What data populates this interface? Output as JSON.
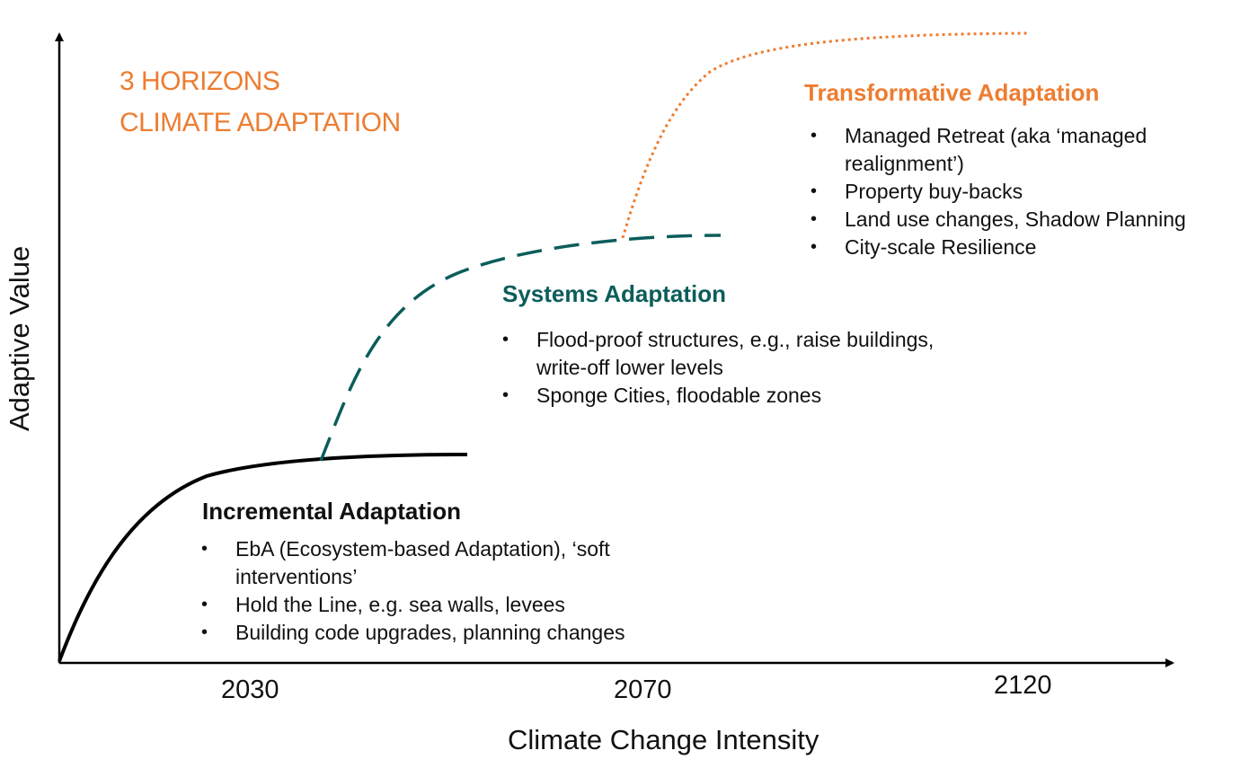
{
  "title_lines": [
    "3 HORIZONS",
    "CLIMATE ADAPTATION"
  ],
  "axes": {
    "x_label": "Climate Change Intensity",
    "y_label": "Adaptive Value",
    "x_ticks": [
      "2030",
      "2070",
      "2120"
    ]
  },
  "horizons": [
    {
      "name": "Incremental Adaptation",
      "line_style": "solid",
      "color": "#000000",
      "bullets": [
        "EbA (Ecosystem-based Adaptation), ‘soft",
        "interventions’",
        "Hold the Line, e.g. sea walls, levees",
        "Building code upgrades, planning changes"
      ]
    },
    {
      "name": "Systems Adaptation",
      "line_style": "dashed",
      "color": "#0B5D5A",
      "bullets": [
        "Flood-proof structures, e.g., raise buildings,",
        "write-off lower levels",
        "Sponge Cities, floodable zones"
      ]
    },
    {
      "name": "Transformative Adaptation",
      "line_style": "dotted",
      "color": "#ED7D31",
      "bullets": [
        "Managed Retreat (aka ‘managed",
        "realignment’)",
        "Property buy-backs",
        "Land use changes, Shadow Planning",
        "City-scale Resilience"
      ]
    }
  ]
}
